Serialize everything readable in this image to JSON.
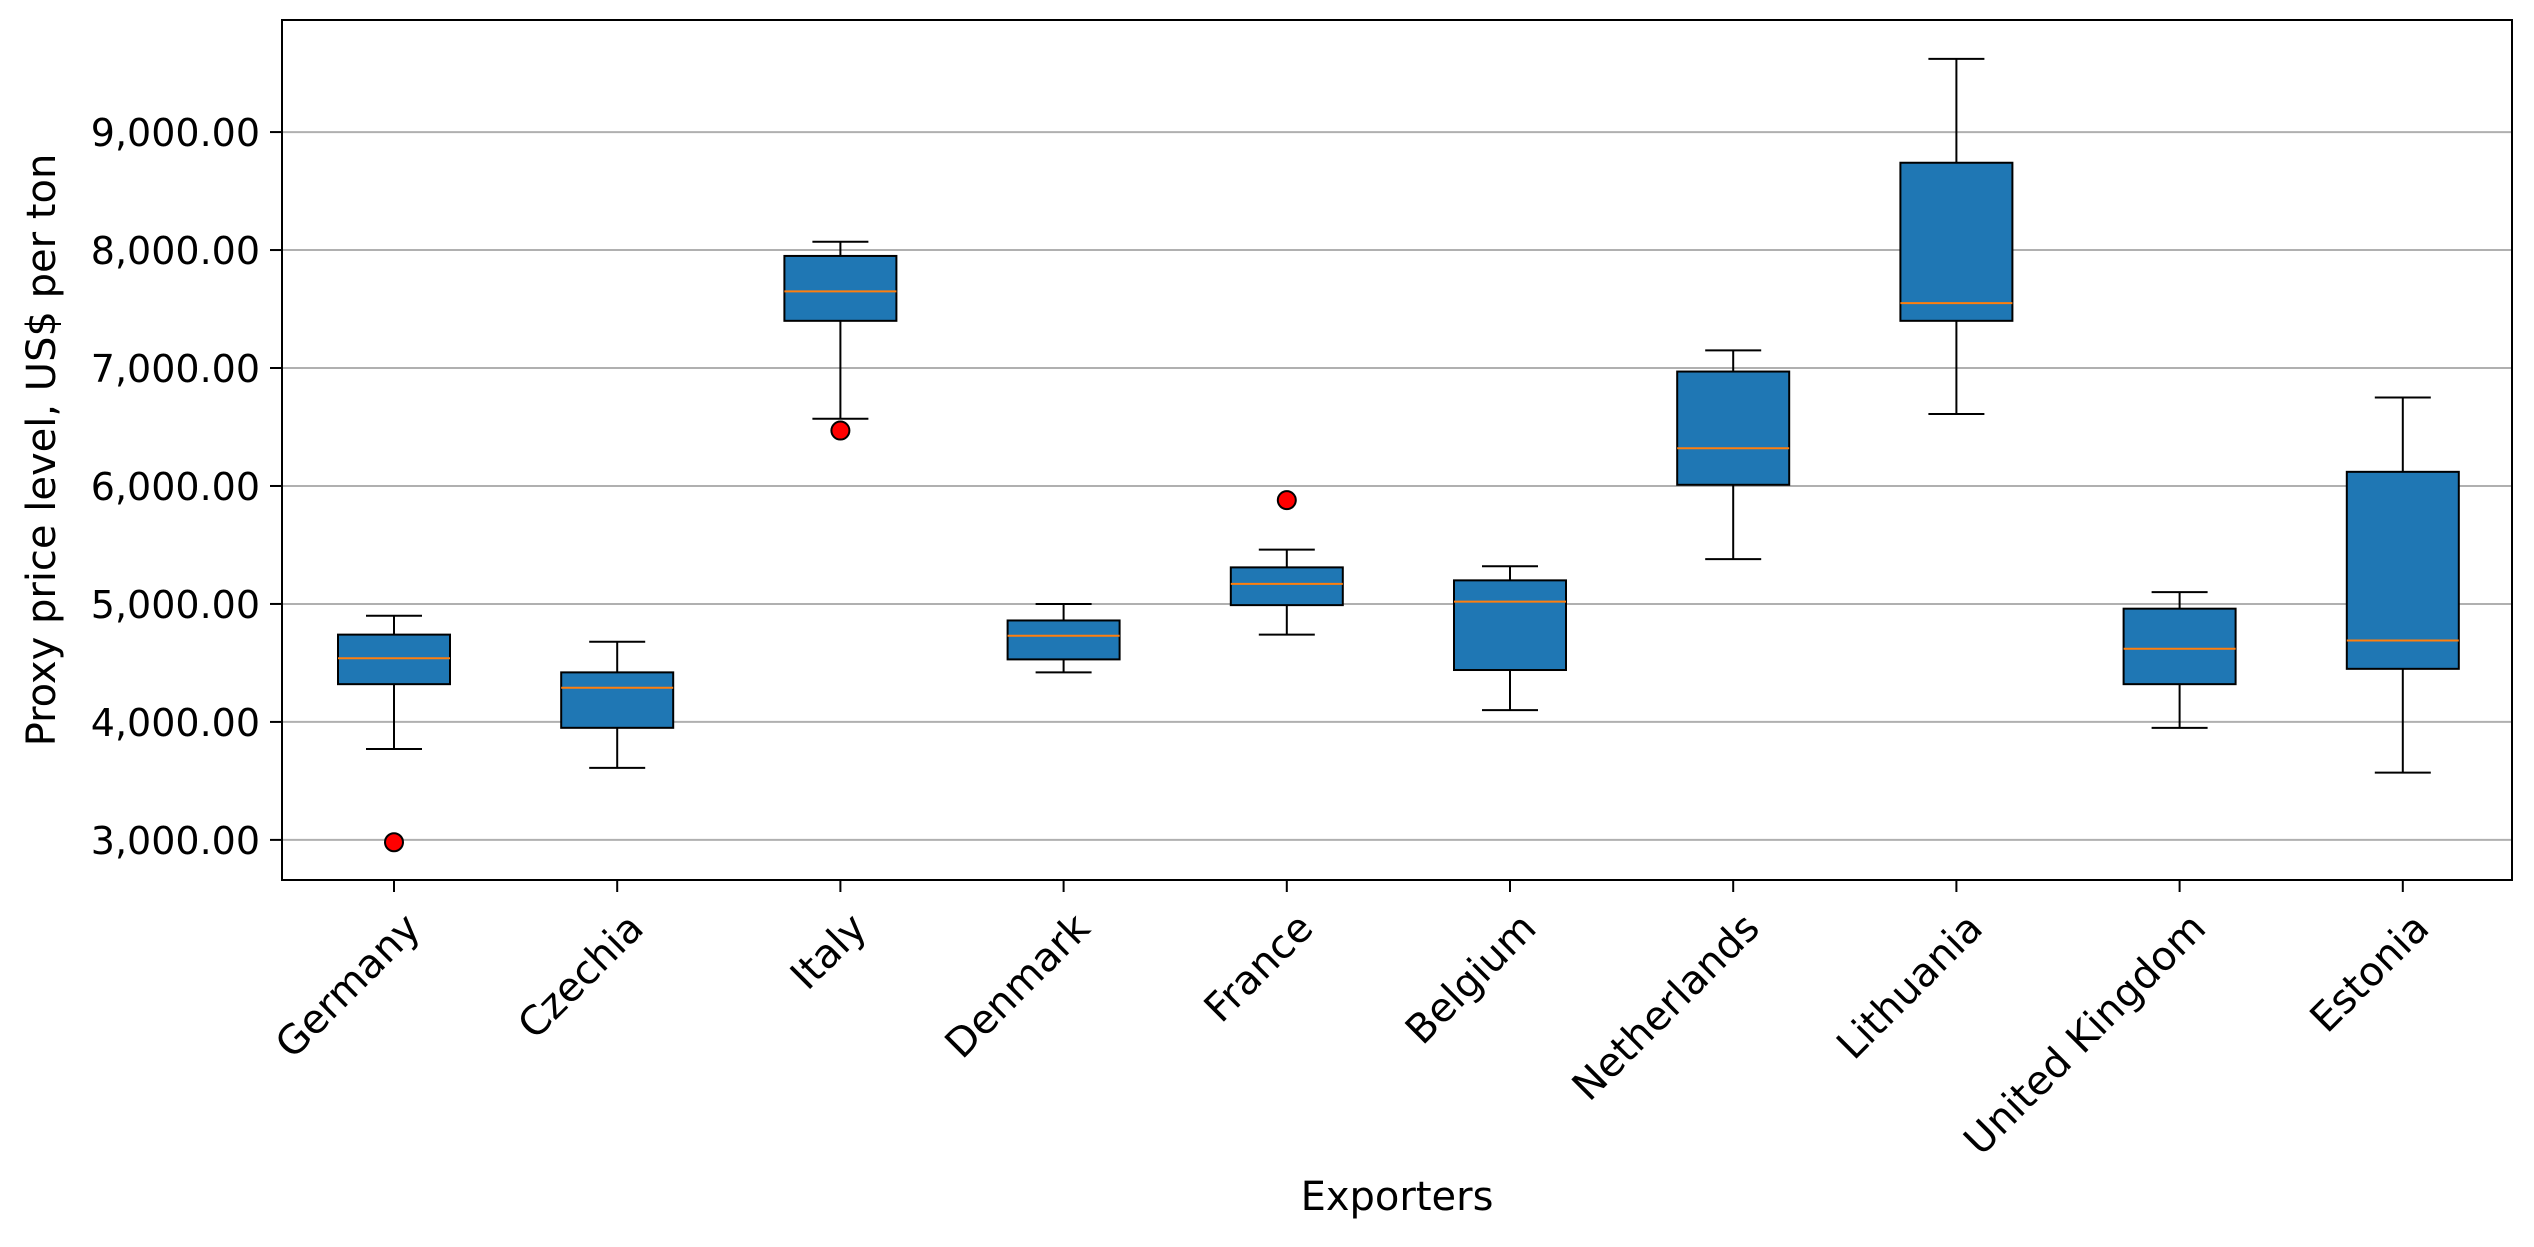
{
  "chart_data": {
    "type": "boxplot",
    "title": "",
    "xlabel": "Exporters",
    "ylabel": "Proxy price level, US$ per ton",
    "ylim": [
      2660,
      9950
    ],
    "y_ticks": [
      {
        "value": 3000,
        "label": "3,000.00"
      },
      {
        "value": 4000,
        "label": "4,000.00"
      },
      {
        "value": 5000,
        "label": "5,000.00"
      },
      {
        "value": 6000,
        "label": "6,000.00"
      },
      {
        "value": 7000,
        "label": "7,000.00"
      },
      {
        "value": 8000,
        "label": "8,000.00"
      },
      {
        "value": 9000,
        "label": "9,000.00"
      }
    ],
    "grid": "horizontal",
    "categories": [
      "Germany",
      "Czechia",
      "Italy",
      "Denmark",
      "France",
      "Belgium",
      "Netherlands",
      "Lithuania",
      "United Kingdom",
      "Estonia"
    ],
    "boxes": [
      {
        "whisker_low": 3770,
        "q1": 4320,
        "median": 4540,
        "q3": 4740,
        "whisker_high": 4900,
        "outliers": [
          2980
        ]
      },
      {
        "whisker_low": 3610,
        "q1": 3950,
        "median": 4290,
        "q3": 4420,
        "whisker_high": 4680,
        "outliers": []
      },
      {
        "whisker_low": 6570,
        "q1": 7400,
        "median": 7650,
        "q3": 7950,
        "whisker_high": 8070,
        "outliers": [
          6470
        ]
      },
      {
        "whisker_low": 4420,
        "q1": 4530,
        "median": 4730,
        "q3": 4860,
        "whisker_high": 5000,
        "outliers": []
      },
      {
        "whisker_low": 4740,
        "q1": 4990,
        "median": 5170,
        "q3": 5310,
        "whisker_high": 5460,
        "outliers": [
          5880
        ]
      },
      {
        "whisker_low": 4100,
        "q1": 4440,
        "median": 5020,
        "q3": 5200,
        "whisker_high": 5320,
        "outliers": []
      },
      {
        "whisker_low": 5380,
        "q1": 6010,
        "median": 6320,
        "q3": 6970,
        "whisker_high": 7150,
        "outliers": []
      },
      {
        "whisker_low": 6610,
        "q1": 7400,
        "median": 7550,
        "q3": 8740,
        "whisker_high": 9620,
        "outliers": []
      },
      {
        "whisker_low": 3950,
        "q1": 4320,
        "median": 4620,
        "q3": 4960,
        "whisker_high": 5100,
        "outliers": []
      },
      {
        "whisker_low": 3570,
        "q1": 4450,
        "median": 4690,
        "q3": 6120,
        "whisker_high": 6750,
        "outliers": []
      }
    ],
    "colors": {
      "box_fill": "#1f77b4",
      "median_line": "#ff7f0e",
      "outlier_fill": "#ff0000",
      "grid": "#b0b0b0",
      "edge": "#000000"
    }
  }
}
